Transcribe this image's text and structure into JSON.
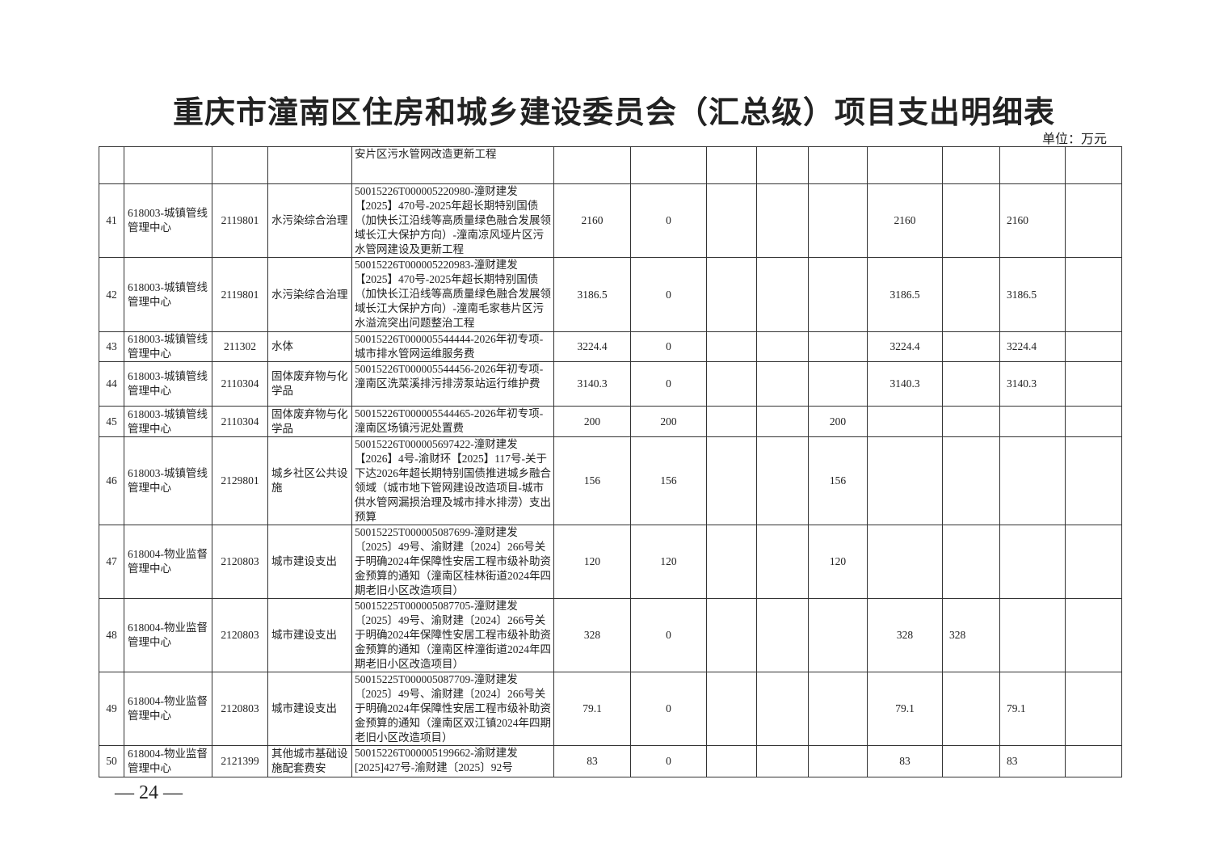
{
  "title": "重庆市潼南区住房和城乡建设委员会（汇总级）项目支出明细表",
  "unit": "单位：万元",
  "page_number": "— 24 —",
  "continuation_row": {
    "desc": "安片区污水管网改造更新工程"
  },
  "rows": [
    {
      "no": "41",
      "unit": "618003-城镇管线管理中心",
      "code": "2119801",
      "category": "水污染综合治理",
      "desc": "50015226T000005220980-潼财建发【2025】470号-2025年超长期特别国债（加快长江沿线等高质量绿色融合发展领域长江大保护方向）-潼南凉风垭片区污水管网建设及更新工程",
      "c6": "2160",
      "c7": "0",
      "c8": "",
      "c9": "",
      "c10": "",
      "c11": "2160",
      "c12": "",
      "c13": "2160",
      "c14": ""
    },
    {
      "no": "42",
      "unit": "618003-城镇管线管理中心",
      "code": "2119801",
      "category": "水污染综合治理",
      "desc": "50015226T000005220983-潼财建发【2025】470号-2025年超长期特别国债（加快长江沿线等高质量绿色融合发展领域长江大保护方向）-潼南毛家巷片区污水溢流突出问题整治工程",
      "c6": "3186.5",
      "c7": "0",
      "c8": "",
      "c9": "",
      "c10": "",
      "c11": "3186.5",
      "c12": "",
      "c13": "3186.5",
      "c14": ""
    },
    {
      "no": "43",
      "unit": "618003-城镇管线管理中心",
      "code": "211302",
      "category": "水体",
      "desc": "50015226T000005544444-2026年初专项-城市排水管网运维服务费",
      "c6": "3224.4",
      "c7": "0",
      "c8": "",
      "c9": "",
      "c10": "",
      "c11": "3224.4",
      "c12": "",
      "c13": "3224.4",
      "c14": ""
    },
    {
      "no": "44",
      "unit": "618003-城镇管线管理中心",
      "code": "2110304",
      "category": "固体废弃物与化学品",
      "desc": "50015226T000005544456-2026年初专项-潼南区洗菜溪排污排涝泵站运行维护费",
      "c6": "3140.3",
      "c7": "0",
      "c8": "",
      "c9": "",
      "c10": "",
      "c11": "3140.3",
      "c12": "",
      "c13": "3140.3",
      "c14": ""
    },
    {
      "no": "45",
      "unit": "618003-城镇管线管理中心",
      "code": "2110304",
      "category": "固体废弃物与化学品",
      "desc": "50015226T000005544465-2026年初专项-潼南区场镇污泥处置费",
      "c6": "200",
      "c7": "200",
      "c8": "",
      "c9": "",
      "c10": "200",
      "c11": "",
      "c12": "",
      "c13": "",
      "c14": ""
    },
    {
      "no": "46",
      "unit": "618003-城镇管线管理中心",
      "code": "2129801",
      "category": "城乡社区公共设施",
      "desc": "50015226T000005697422-潼财建发【2026】4号-渝财环【2025】117号-关于下达2026年超长期特别国债推进城乡融合领域（城市地下管网建设改造项目-城市供水管网漏损治理及城市排水排涝）支出预算",
      "c6": "156",
      "c7": "156",
      "c8": "",
      "c9": "",
      "c10": "156",
      "c11": "",
      "c12": "",
      "c13": "",
      "c14": ""
    },
    {
      "no": "47",
      "unit": "618004-物业监督管理中心",
      "code": "2120803",
      "category": "城市建设支出",
      "desc": "50015225T000005087699-潼财建发〔2025〕49号、渝财建〔2024〕266号关于明确2024年保障性安居工程市级补助资金预算的通知（潼南区桂林街道2024年四期老旧小区改造项目）",
      "c6": "120",
      "c7": "120",
      "c8": "",
      "c9": "",
      "c10": "120",
      "c11": "",
      "c12": "",
      "c13": "",
      "c14": ""
    },
    {
      "no": "48",
      "unit": "618004-物业监督管理中心",
      "code": "2120803",
      "category": "城市建设支出",
      "desc": "50015225T000005087705-潼财建发〔2025〕49号、渝财建〔2024〕266号关于明确2024年保障性安居工程市级补助资金预算的通知（潼南区梓潼街道2024年四期老旧小区改造项目）",
      "c6": "328",
      "c7": "0",
      "c8": "",
      "c9": "",
      "c10": "",
      "c11": "328",
      "c12": "328",
      "c13": "",
      "c14": ""
    },
    {
      "no": "49",
      "unit": "618004-物业监督管理中心",
      "code": "2120803",
      "category": "城市建设支出",
      "desc": "50015225T000005087709-潼财建发〔2025〕49号、渝财建〔2024〕266号关于明确2024年保障性安居工程市级补助资金预算的通知（潼南区双江镇2024年四期老旧小区改造项目）",
      "c6": "79.1",
      "c7": "0",
      "c8": "",
      "c9": "",
      "c10": "",
      "c11": "79.1",
      "c12": "",
      "c13": "79.1",
      "c14": ""
    },
    {
      "no": "50",
      "unit": "618004-物业监督管理中心",
      "code": "2121399",
      "category": "其他城市基础设施配套费安",
      "desc": "50015226T000005199662-渝财建发[2025]427号-渝财建〔2025〕92号",
      "c6": "83",
      "c7": "0",
      "c8": "",
      "c9": "",
      "c10": "",
      "c11": "83",
      "c12": "",
      "c13": "83",
      "c14": ""
    }
  ]
}
